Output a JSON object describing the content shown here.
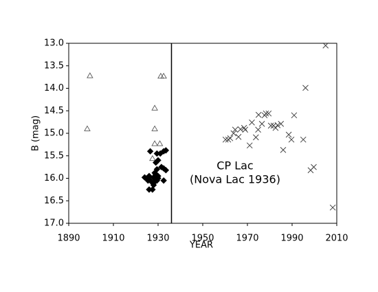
{
  "chart_data": {
    "type": "scatter",
    "x_label": "YEAR",
    "y_label": "B (mag)",
    "xlim": [
      1890,
      2010
    ],
    "xticks": [
      1890,
      1910,
      1930,
      1950,
      1970,
      1990,
      2010
    ],
    "ylim": [
      13,
      17
    ],
    "y_inverted": true,
    "yticks": [
      {
        "value": 13,
        "label": "13.0"
      },
      13.5,
      {
        "value": 14,
        "label": "14.0"
      },
      14.5,
      {
        "value": 15,
        "label": "15.0"
      },
      15.5,
      {
        "value": 16,
        "label": "16.0"
      },
      16.5,
      {
        "value": 17,
        "label": "17.0"
      }
    ],
    "vline": 1936,
    "annotation": [
      "CP Lac",
      "(Nova Lac 1936)"
    ],
    "series": [
      {
        "marker": "triangle",
        "color": "#555555",
        "x": [
          1899.5,
          1898.3,
          1931.2,
          1932.5,
          1928.5,
          1928.5,
          1928.5,
          1930.8,
          1927.5
        ],
        "values": [
          13.72,
          14.9,
          13.73,
          13.73,
          14.44,
          14.9,
          15.23,
          15.23,
          15.56
        ]
      },
      {
        "marker": "diamond",
        "color": "#000000",
        "x": [
          1926.5,
          1929.5,
          1931,
          1932.5,
          1933.5,
          1930,
          1929,
          1931.5,
          1929.5,
          1932.5,
          1933.5,
          1924,
          1925,
          1926,
          1926.5,
          1928,
          1929,
          1930,
          1928.5,
          1929.5,
          1927.5,
          1928,
          1926,
          1927.5,
          1925.5,
          1932.5,
          1930,
          1928.5
        ],
        "values": [
          15.4,
          15.45,
          15.45,
          15.4,
          15.38,
          15.6,
          15.65,
          15.75,
          15.8,
          15.78,
          15.82,
          15.98,
          16.0,
          15.95,
          16.05,
          15.98,
          15.92,
          15.95,
          16.08,
          16.05,
          16.1,
          16.15,
          16.25,
          16.25,
          16.05,
          16.05,
          16.0,
          15.88
        ]
      },
      {
        "marker": "cross",
        "color": "#444444",
        "x": [
          1960.2,
          1961.4,
          1962.3,
          1963.8,
          1964.5,
          1966,
          1966.9,
          1968.5,
          1969,
          1971,
          1972,
          1973.8,
          1974.8,
          1975,
          1976.5,
          1977.7,
          1978.3,
          1979.5,
          1980.5,
          1981.7,
          1982.6,
          1983.5,
          1985,
          1986,
          1988.5,
          1989.7,
          1990.9,
          1995,
          1996,
          1998.3,
          1999.7,
          2005,
          2008.2
        ],
        "values": [
          15.14,
          15.14,
          15.11,
          15.0,
          14.92,
          15.08,
          14.91,
          14.88,
          14.92,
          15.27,
          14.76,
          15.09,
          14.92,
          14.59,
          14.79,
          14.6,
          14.56,
          14.56,
          14.83,
          14.83,
          14.88,
          14.82,
          14.79,
          15.37,
          15.03,
          15.14,
          14.6,
          15.14,
          13.99,
          15.82,
          15.75,
          13.05,
          16.65
        ]
      }
    ]
  }
}
